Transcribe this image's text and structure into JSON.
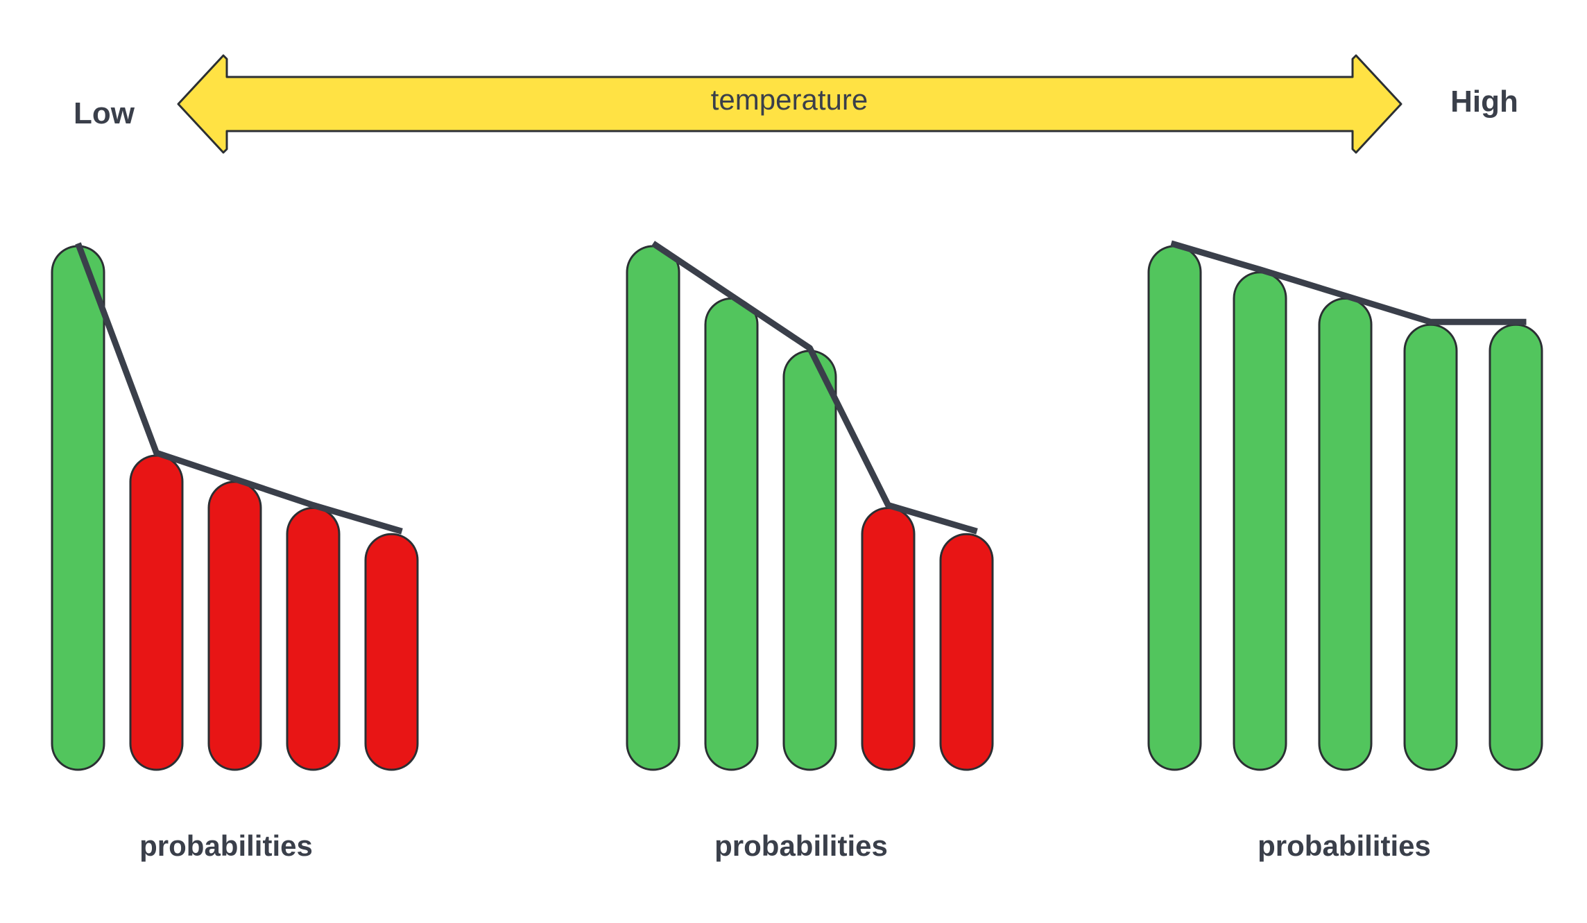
{
  "scale": {
    "low_label": "Low",
    "high_label": "High",
    "arrow_label": "temperature"
  },
  "colors": {
    "arrow_fill": "#FFE244",
    "selected_bar": "#52C55D",
    "rejected_bar": "#E81515",
    "outline": "#2B2F33",
    "curve": "#3A3F4A",
    "text": "#3A3F4A"
  },
  "panels": [
    {
      "caption": "probabilities",
      "bars": [
        {
          "value": 1.0,
          "selected": true
        },
        {
          "value": 0.6,
          "selected": false
        },
        {
          "value": 0.55,
          "selected": false
        },
        {
          "value": 0.5,
          "selected": false
        },
        {
          "value": 0.45,
          "selected": false
        }
      ]
    },
    {
      "caption": "probabilities",
      "bars": [
        {
          "value": 1.0,
          "selected": true
        },
        {
          "value": 0.9,
          "selected": true
        },
        {
          "value": 0.8,
          "selected": true
        },
        {
          "value": 0.5,
          "selected": false
        },
        {
          "value": 0.45,
          "selected": false
        }
      ]
    },
    {
      "caption": "probabilities",
      "bars": [
        {
          "value": 1.0,
          "selected": true
        },
        {
          "value": 0.95,
          "selected": true
        },
        {
          "value": 0.9,
          "selected": true
        },
        {
          "value": 0.85,
          "selected": true
        },
        {
          "value": 0.85,
          "selected": true
        }
      ]
    }
  ]
}
